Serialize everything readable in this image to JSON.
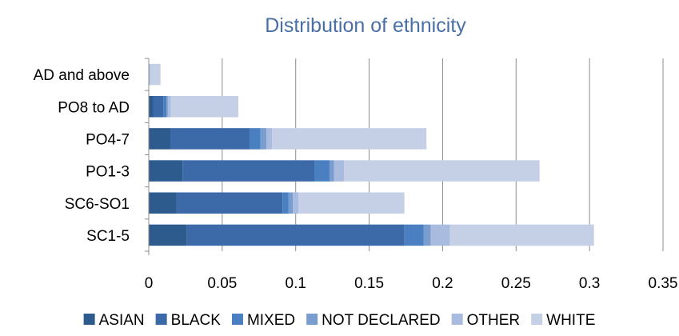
{
  "chart_data": {
    "type": "bar",
    "orientation": "horizontal",
    "stacked": true,
    "title": "Distribution of ethnicity",
    "xlabel": "",
    "ylabel": "",
    "categories": [
      "AD and above",
      "PO8 to AD",
      "PO4-7",
      "PO1-3",
      "SC6-SO1",
      "SC1-5"
    ],
    "series": [
      {
        "name": "ASIAN",
        "color": "#2e5b8e",
        "values": [
          0.0,
          0.003,
          0.015,
          0.023,
          0.019,
          0.026
        ]
      },
      {
        "name": "BLACK",
        "color": "#3c6aa8",
        "values": [
          0.0,
          0.007,
          0.054,
          0.09,
          0.072,
          0.148
        ]
      },
      {
        "name": "MIXED",
        "color": "#4a7fc1",
        "values": [
          0.0,
          0.002,
          0.007,
          0.01,
          0.004,
          0.013
        ]
      },
      {
        "name": "NOT DECLARED",
        "color": "#7a9dd0",
        "values": [
          0.0,
          0.001,
          0.004,
          0.003,
          0.003,
          0.005
        ]
      },
      {
        "name": "OTHER",
        "color": "#a9bcdf",
        "values": [
          0.001,
          0.002,
          0.004,
          0.007,
          0.004,
          0.013
        ]
      },
      {
        "name": "WHITE",
        "color": "#c5d0e6",
        "values": [
          0.007,
          0.046,
          0.105,
          0.133,
          0.072,
          0.098
        ]
      }
    ],
    "xlim": [
      0,
      0.35
    ],
    "x_ticks": [
      "0",
      "0.05",
      "0.1",
      "0.15",
      "0.2",
      "0.25",
      "0.3",
      "0.35"
    ],
    "x_tick_values": [
      0,
      0.05,
      0.1,
      0.15,
      0.2,
      0.25,
      0.3,
      0.35
    ],
    "grid": "vertical",
    "legend": "bottom",
    "title_color": "#4a6fa5",
    "gridline_color": "#8c8c8c"
  }
}
